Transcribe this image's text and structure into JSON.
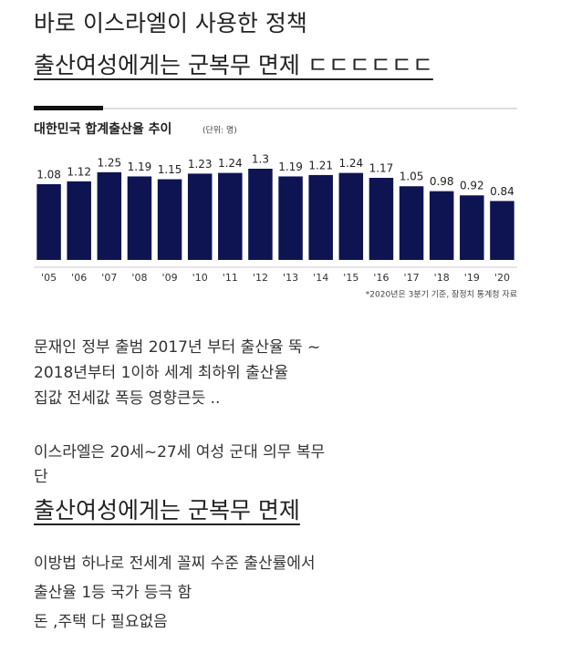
{
  "header": {
    "line1": "바로 이스라엘이 사용한 정책",
    "line2": "출산여성에게는 군복무 면제 ㄷㄷㄷㄷㄷㄷ"
  },
  "chart_data": {
    "type": "bar",
    "title": "대한민국 합계출산율 추이",
    "subtitle": "(단위: 명)",
    "categories": [
      "'05",
      "'06",
      "'07",
      "'08",
      "'09",
      "'10",
      "'11",
      "'12",
      "'13",
      "'14",
      "'15",
      "'16",
      "'17",
      "'18",
      "'19",
      "'20"
    ],
    "values": [
      1.08,
      1.12,
      1.25,
      1.19,
      1.15,
      1.23,
      1.24,
      1.3,
      1.19,
      1.21,
      1.24,
      1.17,
      1.05,
      0.98,
      0.92,
      0.84
    ],
    "color": "#0e1452",
    "note": "*2020년은 3분기 기준, 잠정치  통계청 자료"
  },
  "body": {
    "paragraph1": [
      "문재인 정부 출범 2017년 부터 출산율 뚝 ~",
      "2018년부터 1이하 세계 최하위 출산율",
      "집값 전세값 폭등 영향큰듯 .."
    ],
    "paragraph2": [
      "이스라엘은 20세~27세 여성 군대 의무 복무",
      "단"
    ],
    "highlight": "출산여성에게는 군복무 면제",
    "paragraph3": [
      "이방법 하나로  전세계 꼴찌 수준 출산률에서",
      "출산율 1등 국가 등극 함",
      "돈 ,주택 다 필요없음"
    ]
  }
}
